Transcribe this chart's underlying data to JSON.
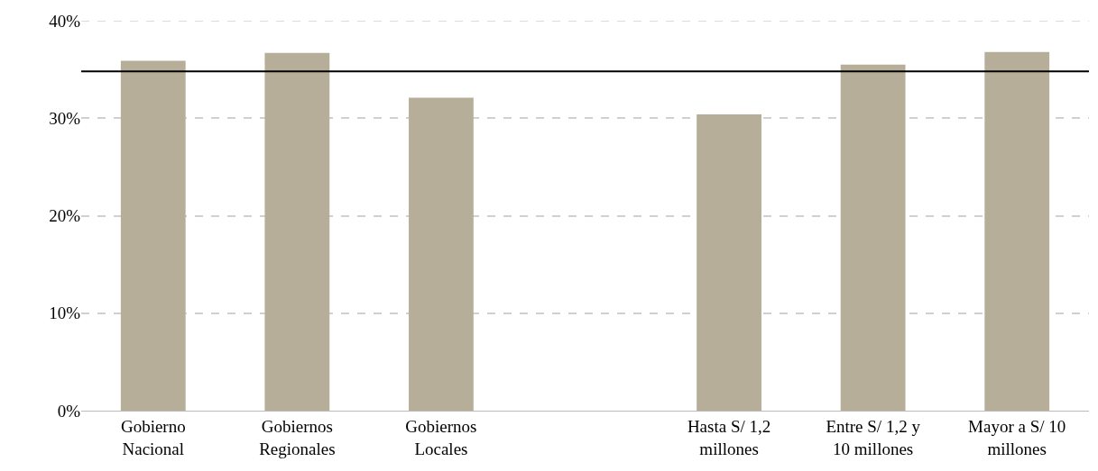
{
  "chart_data": {
    "type": "bar",
    "categories": [
      "Gobierno Nacional",
      "Gobiernos Regionales",
      "Gobiernos Locales",
      null,
      "Hasta S/ 1,2 millones",
      "Entre S/ 1,2 y 10 millones",
      "Mayor a S/ 10 millones"
    ],
    "values": [
      35.9,
      36.7,
      32.1,
      null,
      30.4,
      35.5,
      36.8
    ],
    "color": "#b6ae98",
    "ylim": [
      0,
      40
    ],
    "yticks": [
      {
        "value": 0,
        "label": "0%"
      },
      {
        "value": 10,
        "label": "10%"
      },
      {
        "value": 20,
        "label": "20%"
      },
      {
        "value": 30,
        "label": "30%"
      },
      {
        "value": 40,
        "label": "40%"
      }
    ],
    "grid": "y",
    "ref_lines": [
      {
        "axis": "y",
        "value": 34.8,
        "color": "#000000",
        "line_style": "solid"
      }
    ]
  }
}
